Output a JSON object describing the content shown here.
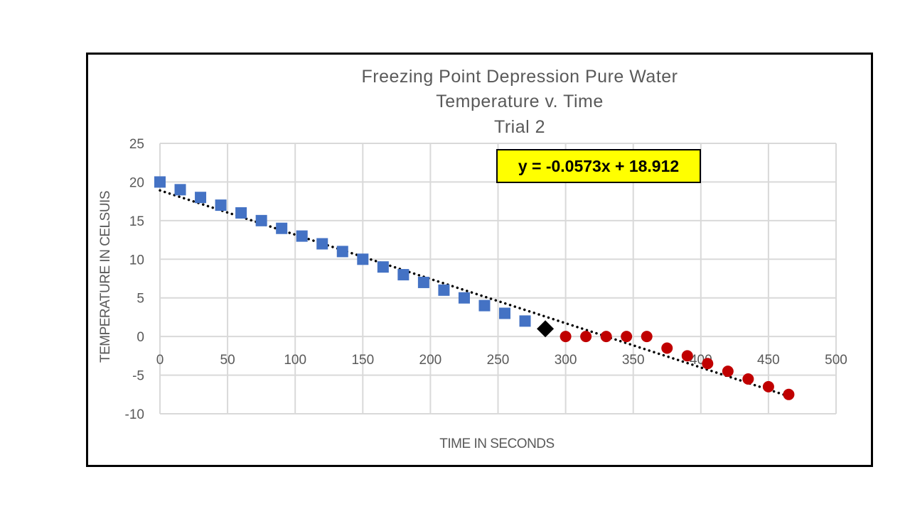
{
  "chart_data": {
    "type": "scatter",
    "title": [
      "Freezing Point Depression Pure Water",
      "Temperature v. Time",
      "Trial 2"
    ],
    "xlabel": "TIME IN SECONDS",
    "ylabel": "TEMPERATURE IN CELSUIS",
    "xlim": [
      0,
      500
    ],
    "ylim": [
      -10,
      25
    ],
    "xticks": [
      0,
      50,
      100,
      150,
      200,
      250,
      300,
      350,
      400,
      450,
      500
    ],
    "yticks": [
      -10,
      -5,
      0,
      5,
      10,
      15,
      20,
      25
    ],
    "grid": true,
    "legend": "none",
    "series": [
      {
        "marker": "square",
        "color": "#4472c4",
        "x": [
          0,
          15,
          30,
          45,
          60,
          75,
          90,
          105,
          120,
          135,
          150,
          165,
          180,
          195,
          210,
          225,
          240,
          255,
          270
        ],
        "y": [
          20,
          19,
          18,
          17,
          16,
          15,
          14,
          13,
          12,
          11,
          10,
          9,
          8,
          7,
          6,
          5,
          4,
          3,
          2
        ]
      },
      {
        "marker": "diamond",
        "color": "#000000",
        "x": [
          285
        ],
        "y": [
          1
        ]
      },
      {
        "marker": "circle",
        "color": "#c00000",
        "x": [
          300,
          315,
          330,
          345,
          360,
          375,
          390,
          405,
          420,
          435,
          450,
          465
        ],
        "y": [
          0,
          0,
          0,
          0,
          0,
          -1.5,
          -2.5,
          -3.5,
          -4.5,
          -5.5,
          -6.5,
          -7.5
        ]
      }
    ],
    "trendline": {
      "style": "dotted",
      "color": "#000000",
      "slope": -0.0573,
      "intercept": 18.912,
      "x_range": [
        0,
        465
      ],
      "label": "y = -0.0573x + 18.912",
      "label_background": "#ffff00"
    }
  }
}
